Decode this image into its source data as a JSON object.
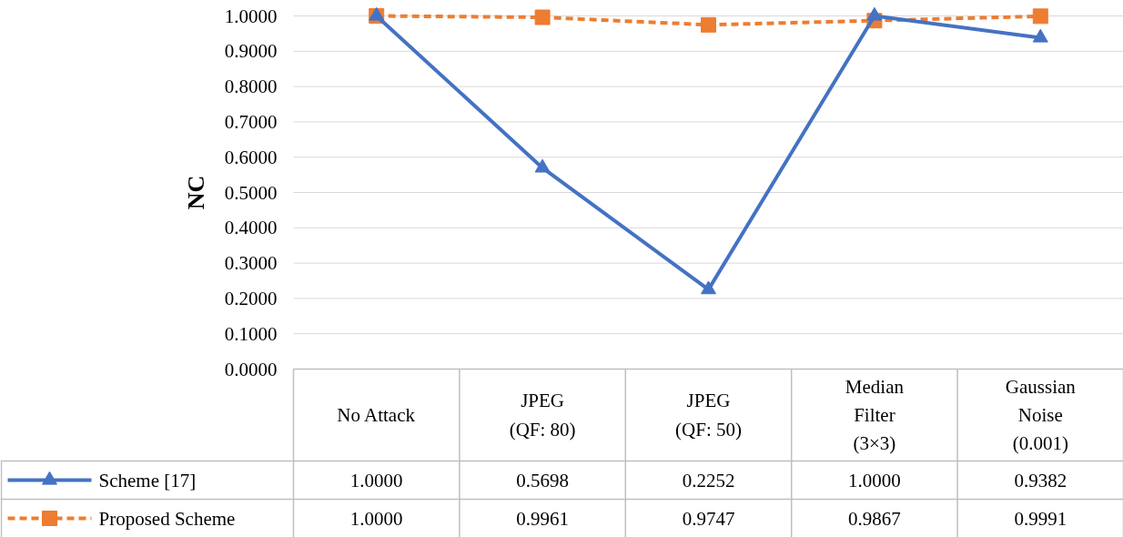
{
  "chart_data": {
    "type": "line",
    "ylabel": "NC",
    "categories": [
      "No Attack",
      "JPEG\n(QF: 80)",
      "JPEG\n(QF: 50)",
      "Median\nFilter\n(3×3)",
      "Gaussian\nNoise\n(0.001)"
    ],
    "series": [
      {
        "name": "Scheme [17]",
        "color": "#4472c4",
        "marker": "triangle",
        "line_style": "solid",
        "values": [
          1.0,
          0.5698,
          0.2252,
          1.0,
          0.9382
        ],
        "value_labels": [
          "1.0000",
          "0.5698",
          "0.2252",
          "1.0000",
          "0.9382"
        ]
      },
      {
        "name": "Proposed Scheme",
        "color": "#ed7d31",
        "marker": "square",
        "line_style": "dashed",
        "values": [
          1.0,
          0.9961,
          0.9747,
          0.9867,
          0.9991
        ],
        "value_labels": [
          "1.0000",
          "0.9961",
          "0.9747",
          "0.9867",
          "0.9991"
        ]
      }
    ],
    "ylim": [
      0,
      1
    ],
    "yticks": [
      {
        "value": 0,
        "label": "0.0000"
      },
      {
        "value": 0.1,
        "label": "0.1000"
      },
      {
        "value": 0.2,
        "label": "0.2000"
      },
      {
        "value": 0.3,
        "label": "0.3000"
      },
      {
        "value": 0.4,
        "label": "0.4000"
      },
      {
        "value": 0.5,
        "label": "0.5000"
      },
      {
        "value": 0.6,
        "label": "0.6000"
      },
      {
        "value": 0.7,
        "label": "0.7000"
      },
      {
        "value": 0.8,
        "label": "0.8000"
      },
      {
        "value": 0.9,
        "label": "0.9000"
      },
      {
        "value": 1,
        "label": "1.0000"
      }
    ],
    "grid": "y",
    "legend": "bottom"
  }
}
